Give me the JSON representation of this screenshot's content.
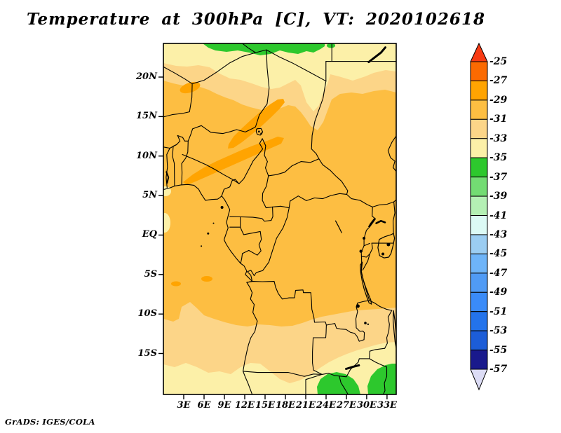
{
  "title": "Temperature at 300hPa [C], VT: 2020102618",
  "credit": "GrADS: IGES/COLA",
  "axes": {
    "lat_ticks": [
      {
        "label": "20N",
        "deg": 20
      },
      {
        "label": "15N",
        "deg": 15
      },
      {
        "label": "10N",
        "deg": 10
      },
      {
        "label": "5N",
        "deg": 5
      },
      {
        "label": "EQ",
        "deg": 0
      },
      {
        "label": "5S",
        "deg": -5
      },
      {
        "label": "10S",
        "deg": -10
      },
      {
        "label": "15S",
        "deg": -15
      }
    ],
    "lon_ticks": [
      {
        "label": "3E",
        "deg": 3
      },
      {
        "label": "6E",
        "deg": 6
      },
      {
        "label": "9E",
        "deg": 9
      },
      {
        "label": "12E",
        "deg": 12
      },
      {
        "label": "15E",
        "deg": 15
      },
      {
        "label": "18E",
        "deg": 18
      },
      {
        "label": "21E",
        "deg": 21
      },
      {
        "label": "24E",
        "deg": 24
      },
      {
        "label": "27E",
        "deg": 27
      },
      {
        "label": "30E",
        "deg": 30
      },
      {
        "label": "33E",
        "deg": 33
      }
    ]
  },
  "legend": {
    "tick_labels": [
      "-25",
      "-27",
      "-29",
      "-31",
      "-33",
      "-35",
      "-37",
      "-39",
      "-41",
      "-43",
      "-45",
      "-47",
      "-49",
      "-51",
      "-53",
      "-55",
      "-57"
    ],
    "segment_colors": [
      "#fb6a01",
      "#ffa401",
      "#fdbe42",
      "#fcd588",
      "#fcf0a8",
      "#2dc82d",
      "#73dc73",
      "#b4f0b4",
      "#dcfaf5",
      "#9bcdf2",
      "#6eb4f8",
      "#509bf5",
      "#3a8bf8",
      "#2373eb",
      "#1c5dd8",
      "#19198c"
    ],
    "arrow_top_color": "#f83b14",
    "arrow_bottom_color": "#dcdcf5"
  },
  "field_colors": {
    "base": "#fdbe42",
    "warm": "#ffa401",
    "tan": "#fcd588",
    "pale": "#fcf0a8",
    "green": "#2dc82d"
  },
  "chart_data": {
    "type": "heatmap",
    "title": "Temperature at 300hPa [C], VT: 2020102618",
    "variable": "Temperature",
    "pressure_level_hPa": 300,
    "units": "C",
    "valid_time": "2020102618",
    "xlabel": "",
    "ylabel": "",
    "x_ticks": [
      "3E",
      "6E",
      "9E",
      "12E",
      "15E",
      "18E",
      "21E",
      "24E",
      "27E",
      "30E",
      "33E"
    ],
    "y_ticks": [
      "20N",
      "15N",
      "10N",
      "5N",
      "EQ",
      "5S",
      "10S",
      "15S"
    ],
    "lon_range_deg_east": [
      0,
      34.3
    ],
    "lat_range_deg": [
      -20.2,
      24.3
    ],
    "contour_interval": 2,
    "legend_levels": [
      -25,
      -27,
      -29,
      -31,
      -33,
      -35,
      -37,
      -39,
      -41,
      -43,
      -45,
      -47,
      -49,
      -51,
      -53,
      -55,
      -57
    ],
    "legend_colors": [
      "#fb6a01",
      "#ffa401",
      "#fdbe42",
      "#fcd588",
      "#fcf0a8",
      "#2dc82d",
      "#73dc73",
      "#b4f0b4",
      "#dcfaf5",
      "#9bcdf2",
      "#6eb4f8",
      "#509bf5",
      "#3a8bf8",
      "#2373eb",
      "#1c5dd8",
      "#19198c"
    ],
    "grid": false,
    "legend_position": "right vertical colorbar with out-of-range arrows",
    "field_summary": [
      {
        "region": "far northern edge of map (~23-24N, 6-25E)",
        "value_range_C": "-35 to -37",
        "color": "#2dc82d"
      },
      {
        "region": "northern band (~19.5-24N, all longitudes)",
        "value_range_C": "-33 to -35",
        "color": "#fcf0a8"
      },
      {
        "region": "transition band (~17-20N)",
        "value_range_C": "-31 to -33",
        "color": "#fcd588"
      },
      {
        "region": "bulk of domain (~17N to 12S)",
        "value_range_C": "-29 to -31",
        "color": "#fdbe42"
      },
      {
        "region": "warm Sahel streaks near/around Lake Chad (~7-16N, 3-18E)",
        "value_range_C": "-27 to -29",
        "color": "#ffa401"
      },
      {
        "region": "southern band (~12-16S)",
        "value_range_C": "-31 to -33",
        "color": "#fcd588"
      },
      {
        "region": "far south band (~15-20S)",
        "value_range_C": "-33 to -35",
        "color": "#fcf0a8"
      },
      {
        "region": "bottom-right corner (~25-34E, 16-20S)",
        "value_range_C": "-35 to -37",
        "color": "#2dc82d"
      }
    ],
    "source_label": "GrADS: IGES/COLA"
  }
}
